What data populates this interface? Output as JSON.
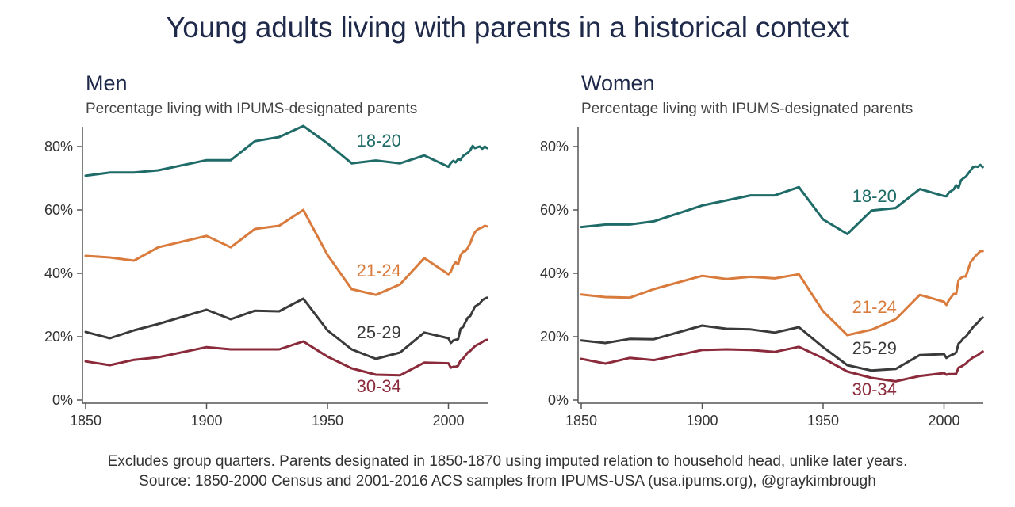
{
  "title": "Young adults living with parents in a historical context",
  "footer": {
    "line1": "Excludes group quarters. Parents designated in 1850-1870 using imputed relation to household head, unlike later years.",
    "line2": "Source: 1850-2000 Census and 2001-2016 ACS samples from IPUMS-USA (usa.ipums.org), @graykimbrough"
  },
  "colors": {
    "18-20": "#1e6b68",
    "21-24": "#d97b3c",
    "25-29": "#3a3a3a",
    "30-34": "#8a2a3a",
    "title": "#1f2a4a",
    "axis": "#555555"
  },
  "chart_data": [
    {
      "type": "line",
      "title": "Men",
      "subtitle": "Percentage living with IPUMS-designated parents",
      "xlabel": "",
      "ylabel": "",
      "xlim": [
        1850,
        2016
      ],
      "ylim": [
        0,
        87
      ],
      "xticks": [
        1850,
        1900,
        1950,
        2000
      ],
      "xtick_labels": [
        "1850",
        "1900",
        "1950",
        "2000"
      ],
      "yticks": [
        0,
        20,
        40,
        60,
        80
      ],
      "ytick_labels": [
        "0%",
        "20%",
        "40%",
        "60%",
        "80%"
      ],
      "grid": false,
      "legend": "direct labels on lines",
      "x": [
        1850,
        1860,
        1870,
        1880,
        1900,
        1910,
        1920,
        1930,
        1940,
        1950,
        1960,
        1970,
        1980,
        1990,
        2000,
        2001,
        2002,
        2003,
        2004,
        2005,
        2006,
        2007,
        2008,
        2009,
        2010,
        2011,
        2012,
        2013,
        2014,
        2015,
        2016
      ],
      "series": [
        {
          "name": "18-20",
          "label_at": [
            1962,
            80
          ],
          "values": [
            70.8,
            71.8,
            71.8,
            72.5,
            75.7,
            75.7,
            81.7,
            83,
            86.5,
            81,
            74.7,
            75.6,
            74.7,
            77.2,
            73.6,
            74.8,
            75.5,
            75,
            76,
            75.8,
            77,
            77.5,
            78,
            78.8,
            80.2,
            79.5,
            79.8,
            80,
            79.3,
            80,
            79.5
          ]
        },
        {
          "name": "21-24",
          "label_at": [
            1962,
            39
          ],
          "values": [
            45.5,
            45,
            44,
            48.2,
            51.8,
            48.2,
            54,
            55,
            60,
            45.8,
            35,
            33.2,
            36.5,
            44.8,
            39.7,
            40.5,
            42.5,
            43.5,
            42.8,
            45.7,
            46.8,
            47,
            48,
            49.5,
            51.5,
            53,
            53.8,
            54.2,
            54.5,
            55,
            54.8
          ]
        },
        {
          "name": "25-29",
          "label_at": [
            1962,
            19.5
          ],
          "values": [
            21.5,
            19.5,
            22,
            24,
            28.5,
            25.5,
            28.2,
            28,
            32,
            22,
            16,
            13,
            15,
            21.3,
            19.5,
            18,
            18.8,
            19,
            19.2,
            22.5,
            23,
            24.5,
            26,
            26.5,
            28,
            29.5,
            30,
            30.5,
            31.5,
            32,
            32.3
          ]
        },
        {
          "name": "30-34",
          "label_at": [
            1962,
            2.5
          ],
          "values": [
            12.2,
            11,
            12.7,
            13.5,
            16.7,
            16,
            16,
            16,
            18.5,
            13.7,
            10,
            8,
            7.8,
            11.8,
            11.6,
            10.2,
            10.5,
            10.5,
            10.8,
            12.5,
            13,
            14,
            15,
            15.5,
            16.3,
            17,
            17.5,
            17.8,
            18.3,
            18.8,
            19
          ]
        }
      ]
    },
    {
      "type": "line",
      "title": "Women",
      "subtitle": "Percentage living with IPUMS-designated parents",
      "xlabel": "",
      "ylabel": "",
      "xlim": [
        1850,
        2016
      ],
      "ylim": [
        0,
        87
      ],
      "xticks": [
        1850,
        1900,
        1950,
        2000
      ],
      "xtick_labels": [
        "1850",
        "1900",
        "1950",
        "2000"
      ],
      "yticks": [
        0,
        20,
        40,
        60,
        80
      ],
      "ytick_labels": [
        "0%",
        "20%",
        "40%",
        "60%",
        "80%"
      ],
      "grid": false,
      "legend": "direct labels on lines",
      "x": [
        1850,
        1860,
        1870,
        1880,
        1900,
        1910,
        1920,
        1930,
        1940,
        1950,
        1960,
        1970,
        1980,
        1990,
        2000,
        2001,
        2002,
        2003,
        2004,
        2005,
        2006,
        2007,
        2008,
        2009,
        2010,
        2011,
        2012,
        2013,
        2014,
        2015,
        2016
      ],
      "series": [
        {
          "name": "18-20",
          "label_at": [
            1962,
            62.5
          ],
          "values": [
            54.6,
            55.4,
            55.4,
            56.4,
            61.4,
            63,
            64.6,
            64.6,
            67.2,
            57,
            52.4,
            59.8,
            60.6,
            66.6,
            64.4,
            64.3,
            65.5,
            66,
            66.5,
            67.8,
            67,
            69.3,
            70,
            70.5,
            71.5,
            72.5,
            73.5,
            73.7,
            73.6,
            74.2,
            73.5
          ]
        },
        {
          "name": "21-24",
          "label_at": [
            1962,
            27.5
          ],
          "values": [
            33.3,
            32.5,
            32.3,
            35,
            39.2,
            38.2,
            38.9,
            38.4,
            39.7,
            28,
            20.5,
            22.2,
            25.5,
            33.2,
            31,
            30,
            31.5,
            32.5,
            33.5,
            33.5,
            37.8,
            38.5,
            39,
            39,
            41.3,
            43.5,
            44.5,
            45.5,
            46.2,
            47,
            47
          ]
        },
        {
          "name": "25-29",
          "label_at": [
            1962,
            14.5
          ],
          "values": [
            18.8,
            18,
            19.3,
            19.2,
            23.5,
            22.5,
            22.3,
            21.3,
            23,
            16.7,
            11,
            9.3,
            9.8,
            14.2,
            14.5,
            13.3,
            13.8,
            14.2,
            14.5,
            15,
            17.8,
            18.5,
            19.5,
            20,
            21,
            22,
            23,
            23.8,
            24.5,
            25.5,
            26
          ]
        },
        {
          "name": "30-34",
          "label_at": [
            1962,
            1.5
          ],
          "values": [
            13,
            11.5,
            13.3,
            12.6,
            15.8,
            16,
            15.8,
            15.2,
            16.8,
            13.2,
            9,
            7,
            5.9,
            7.6,
            8.5,
            8,
            8.2,
            8.2,
            8.2,
            8.3,
            10.2,
            10.5,
            11,
            11.5,
            12.3,
            12.8,
            13.5,
            13.8,
            14.2,
            14.8,
            15.3
          ]
        }
      ]
    }
  ]
}
